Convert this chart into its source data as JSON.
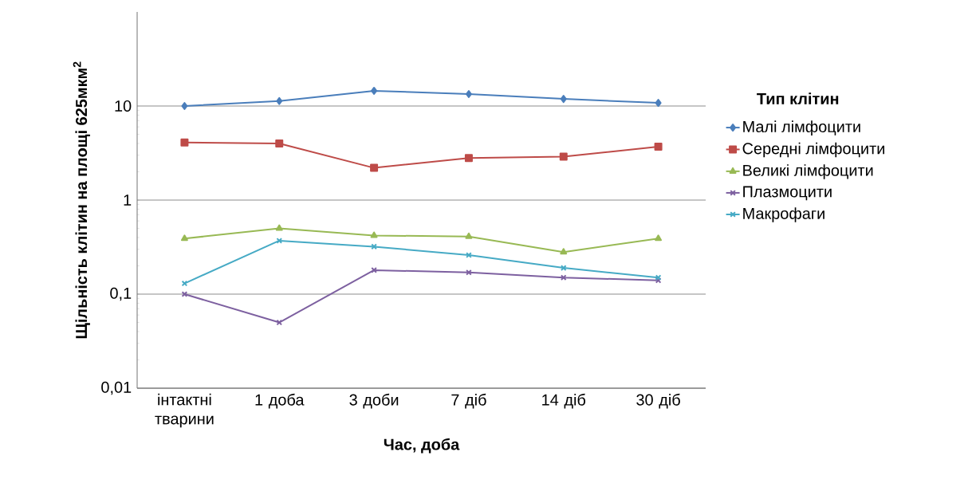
{
  "chart_data": {
    "type": "line",
    "ylabel": "Щільність  клітин на площі 625мкм$^{2}$",
    "xlabel": "Час, доба",
    "legend_title": "Тип клітин",
    "categories": [
      "інтактні тварини",
      "1 доба",
      "3 доби",
      "7 діб",
      "14 діб",
      "30 діб"
    ],
    "series": [
      {
        "name": "Малі лімфоцити",
        "color": "#4a7ebb",
        "marker": "diamond",
        "values": [
          10,
          11.3,
          14.5,
          13.4,
          11.9,
          10.8
        ]
      },
      {
        "name": "Середні лімфоцити",
        "color": "#be4b48",
        "marker": "square",
        "values": [
          4.1,
          4.0,
          2.2,
          2.8,
          2.9,
          3.7
        ]
      },
      {
        "name": "Великі лімфоцити",
        "color": "#98b954",
        "marker": "triangle",
        "values": [
          0.39,
          0.5,
          0.42,
          0.41,
          0.28,
          0.39
        ]
      },
      {
        "name": "Плазмоцити",
        "color": "#7d60a0",
        "marker": "cross",
        "values": [
          0.1,
          0.05,
          0.18,
          0.17,
          0.15,
          0.14
        ]
      },
      {
        "name": "Макрофаги",
        "color": "#46aac5",
        "marker": "cross",
        "values": [
          0.13,
          0.37,
          0.32,
          0.26,
          0.19,
          0.15
        ]
      }
    ],
    "log": "y",
    "ylim": [
      0.01,
      100
    ],
    "yticks": [
      {
        "value": 0.01,
        "label": "0,01"
      },
      {
        "value": 0.1,
        "label": "0,1"
      },
      {
        "value": 1,
        "label": "1"
      },
      {
        "value": 10,
        "label": "10"
      }
    ],
    "grid": "y",
    "legend": "right"
  }
}
